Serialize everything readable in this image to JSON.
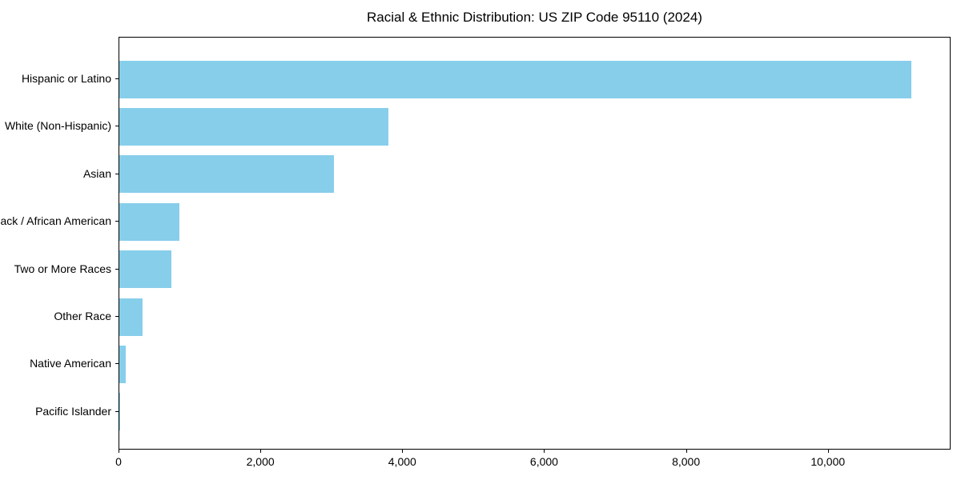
{
  "chart_data": {
    "type": "bar",
    "orientation": "horizontal",
    "title": "Racial & Ethnic Distribution: US ZIP Code 95110 (2024)",
    "categories": [
      "Hispanic or Latino",
      "White (Non-Hispanic)",
      "Asian",
      "Black / African American",
      "Two or More Races",
      "Other Race",
      "Native American",
      "Pacific Islander"
    ],
    "values": [
      11170,
      3790,
      3030,
      845,
      730,
      330,
      85,
      15
    ],
    "xlabel": "",
    "ylabel": "",
    "xlim": [
      0,
      11730
    ],
    "xticks": [
      0,
      2000,
      4000,
      6000,
      8000,
      10000
    ],
    "xtick_labels": [
      "0",
      "2,000",
      "4,000",
      "6,000",
      "8,000",
      "10,000"
    ],
    "bar_color": "#87CEEB",
    "text_color": "#000000",
    "grid": false,
    "legend": null
  }
}
